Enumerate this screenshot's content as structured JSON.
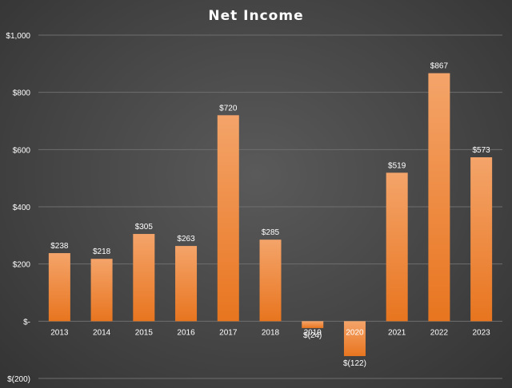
{
  "chart_data": {
    "type": "bar",
    "title": "Net Income",
    "xlabel": "",
    "ylabel": "",
    "categories": [
      "2013",
      "2014",
      "2015",
      "2016",
      "2017",
      "2018",
      "2019",
      "2020",
      "2021",
      "2022",
      "2023"
    ],
    "values": [
      238,
      218,
      305,
      263,
      720,
      285,
      -24,
      -122,
      519,
      867,
      573
    ],
    "data_labels": [
      "$238",
      "$218",
      "$305",
      "$263",
      "$720",
      "$285",
      "$(24)",
      "$(122)",
      "$519",
      "$867",
      "$573"
    ],
    "ylim": [
      -200,
      1000
    ],
    "yticks": [
      1000,
      800,
      600,
      400,
      200,
      0,
      -200
    ],
    "ytick_labels": [
      "$1,000",
      "$800",
      "$600",
      "$400",
      "$200",
      "$-",
      "$(200)"
    ],
    "grid": true,
    "legend": "none",
    "colors": {
      "bar_top": "#f4a46a",
      "bar_bottom": "#e8751f",
      "background": "#454545"
    }
  }
}
